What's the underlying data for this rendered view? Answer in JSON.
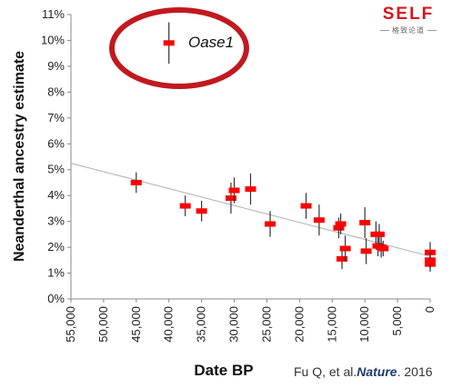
{
  "chart_data": {
    "type": "scatter",
    "title": "",
    "xlabel": "Date BP",
    "ylabel": "Neanderthal ancestry estimate",
    "xlim": [
      55000,
      0
    ],
    "ylim": [
      0,
      11
    ],
    "x_ticks": [
      "55,000",
      "50,000",
      "45,000",
      "40,000",
      "35,000",
      "30,000",
      "25,000",
      "20,000",
      "15,000",
      "10,000",
      "5,000",
      "0"
    ],
    "y_ticks": [
      "0%",
      "1%",
      "2%",
      "3%",
      "4%",
      "5%",
      "6%",
      "7%",
      "8%",
      "9%",
      "10%",
      "11%"
    ],
    "grid": false,
    "colors": {
      "marker": "#ff0000",
      "errorbar": "#333333",
      "trend": "#b0b0b0",
      "ellipse": "#c0191f"
    },
    "trend_line": {
      "x": [
        55000,
        0
      ],
      "y": [
        5.25,
        1.65
      ]
    },
    "points": [
      {
        "x": 40000,
        "y": 9.9,
        "err": 0.8
      },
      {
        "x": 45000,
        "y": 4.5,
        "err": 0.4
      },
      {
        "x": 37500,
        "y": 3.6,
        "err": 0.4
      },
      {
        "x": 35000,
        "y": 3.4,
        "err": 0.4
      },
      {
        "x": 30500,
        "y": 3.9,
        "err": 0.6
      },
      {
        "x": 30000,
        "y": 4.2,
        "err": 0.5
      },
      {
        "x": 27500,
        "y": 4.25,
        "err": 0.6
      },
      {
        "x": 24500,
        "y": 2.9,
        "err": 0.5
      },
      {
        "x": 19000,
        "y": 3.6,
        "err": 0.5
      },
      {
        "x": 17000,
        "y": 3.05,
        "err": 0.6
      },
      {
        "x": 14000,
        "y": 2.75,
        "err": 0.4
      },
      {
        "x": 13700,
        "y": 2.9,
        "err": 0.4
      },
      {
        "x": 13500,
        "y": 1.55,
        "err": 0.4
      },
      {
        "x": 13000,
        "y": 1.95,
        "err": 0.5
      },
      {
        "x": 10000,
        "y": 2.95,
        "err": 0.6
      },
      {
        "x": 9800,
        "y": 1.85,
        "err": 0.5
      },
      {
        "x": 8300,
        "y": 2.5,
        "err": 0.5
      },
      {
        "x": 8000,
        "y": 2.05,
        "err": 0.4
      },
      {
        "x": 7800,
        "y": 2.5,
        "err": 0.4
      },
      {
        "x": 7500,
        "y": 2.0,
        "err": 0.4
      },
      {
        "x": 7200,
        "y": 1.95,
        "err": 0.3
      },
      {
        "x": 0,
        "y": 1.8,
        "err": 0.4
      },
      {
        "x": 0,
        "y": 1.5,
        "err": 0.3
      },
      {
        "x": 0,
        "y": 1.35,
        "err": 0.3
      },
      {
        "x": 0,
        "y": 1.45,
        "err": 0.3
      }
    ],
    "annotations": [
      {
        "text": "Oase1",
        "x": 39000,
        "y": 9.9,
        "highlight": "ellipse"
      }
    ]
  },
  "logo": {
    "main": "SELF",
    "sub": "格致论道"
  },
  "citation": {
    "authors": "Fu Q, et al.",
    "journal": "Nature",
    "year": ". 2016"
  }
}
